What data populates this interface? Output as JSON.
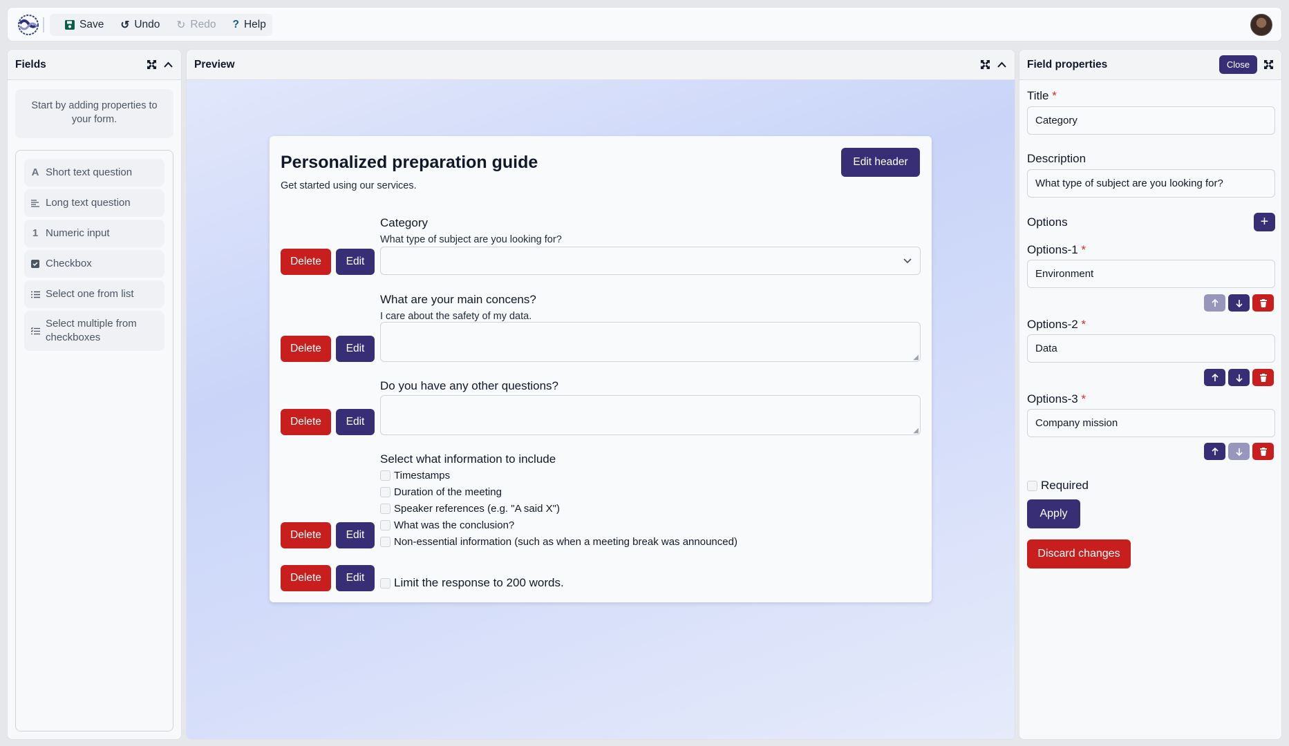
{
  "toolbar": {
    "save": "Save",
    "undo": "Undo",
    "redo": "Redo",
    "help": "Help"
  },
  "fields_panel": {
    "title": "Fields",
    "info": "Start by adding properties to your form.",
    "items": [
      {
        "label": "Short text question",
        "icon": "A"
      },
      {
        "label": "Long text question",
        "icon": "lines"
      },
      {
        "label": "Numeric input",
        "icon": "1"
      },
      {
        "label": "Checkbox",
        "icon": "checkbox"
      },
      {
        "label": "Select one from list",
        "icon": "list"
      },
      {
        "label": "Select multiple from checkboxes",
        "icon": "checklist"
      }
    ]
  },
  "preview": {
    "title": "Preview",
    "form": {
      "title": "Personalized preparation guide",
      "subtitle": "Get started using our services.",
      "edit_header": "Edit header",
      "delete_label": "Delete",
      "edit_label": "Edit",
      "questions": [
        {
          "label": "Category",
          "description": "What type of subject are you looking for?",
          "type": "select",
          "value": ""
        },
        {
          "label": "What are your main concens?",
          "description": "I care about the safety of my data.",
          "type": "textarea",
          "value": ""
        },
        {
          "label": "Do you have any other questions?",
          "type": "textarea",
          "value": ""
        },
        {
          "label": "Select what information to include",
          "type": "checkboxes",
          "options": [
            "Timestamps",
            "Duration of the meeting",
            "Speaker references (e.g. \"A said X\")",
            "What was the conclusion?",
            "Non-essential information (such as when a meeting break was announced)"
          ]
        },
        {
          "label": "Limit the response to 200 words.",
          "type": "checkbox",
          "checked": false
        }
      ]
    }
  },
  "properties": {
    "title": "Field properties",
    "close": "Close",
    "title_label": "Title",
    "title_value": "Category",
    "description_label": "Description",
    "description_value": "What type of subject are you looking for?",
    "options_label": "Options",
    "options": [
      {
        "label": "Options-1",
        "value": "Environment"
      },
      {
        "label": "Options-2",
        "value": "Data"
      },
      {
        "label": "Options-3",
        "value": "Company mission"
      }
    ],
    "required_label": "Required",
    "required": false,
    "apply": "Apply",
    "discard": "Discard changes"
  },
  "colors": {
    "primary": "#372e75",
    "danger": "#c81e1e",
    "disabled": "#9896bd"
  }
}
